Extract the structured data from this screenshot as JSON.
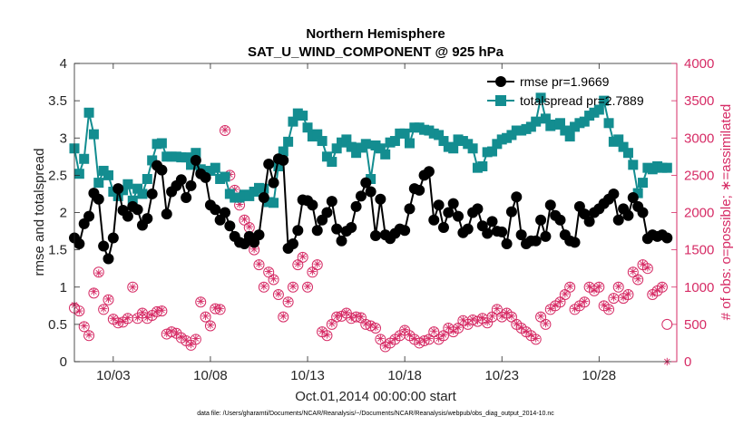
{
  "chart_data": {
    "type": "line",
    "title": "Northern Hemisphere",
    "subtitle": "SAT_U_WIND_COMPONENT @ 925 hPa",
    "xlabel": "Oct.01,2014 00:00:00 start",
    "ylabel_left": "rmse and totalspread",
    "ylabel_right": "# of obs: o=possible; ∗=assimilated",
    "footnote": "data file: /Users/gharamti/Documents/NCAR/Reanalysis/~/Documents/NCAR/Reanalysis/webpub/obs_diag_output_2014-10.nc",
    "xlim": [
      1.0,
      32.0
    ],
    "ylim_left": [
      0,
      4
    ],
    "ylim_right": [
      0,
      4000
    ],
    "x_ticks": [
      3,
      8,
      13,
      18,
      23,
      28
    ],
    "x_tick_labels": [
      "10/03",
      "10/08",
      "10/13",
      "10/18",
      "10/23",
      "10/28"
    ],
    "y_ticks_left": [
      0,
      0.5,
      1,
      1.5,
      2,
      2.5,
      3,
      3.5,
      4
    ],
    "y_tick_labels_left": [
      "0",
      "0.5",
      "1",
      "1.5",
      "2",
      "2.5",
      "3",
      "3.5",
      "4"
    ],
    "y_ticks_right": [
      0,
      500,
      1000,
      1500,
      2000,
      2500,
      3000,
      3500,
      4000
    ],
    "y_tick_labels_right": [
      "0",
      "500",
      "1000",
      "1500",
      "2000",
      "2500",
      "3000",
      "3500",
      "4000"
    ],
    "legend_position": "top-right",
    "colors": {
      "rmse": "#000000",
      "totalspread": "#138d90",
      "obs": "#d62b65",
      "axis": "#262626"
    },
    "x_start": 1.0,
    "x_step": 0.25,
    "series": [
      {
        "name": "rmse pr=1.9669",
        "axis": "left",
        "values": [
          1.66,
          1.58,
          1.85,
          1.95,
          2.26,
          2.18,
          1.55,
          1.38,
          1.66,
          2.32,
          2.03,
          1.95,
          2.08,
          2.04,
          1.83,
          1.92,
          2.25,
          2.63,
          2.57,
          1.98,
          2.28,
          2.36,
          2.44,
          2.2,
          2.36,
          2.7,
          2.52,
          2.47,
          2.1,
          2.04,
          1.9,
          2.0,
          1.82,
          1.68,
          1.6,
          1.58,
          1.68,
          1.6,
          1.7,
          2.2,
          2.65,
          2.4,
          2.72,
          2.7,
          1.52,
          1.58,
          1.76,
          2.17,
          2.16,
          2.1,
          1.76,
          1.9,
          2.0,
          2.15,
          1.78,
          1.62,
          1.75,
          1.8,
          2.08,
          2.22,
          2.4,
          2.28,
          1.69,
          2.18,
          1.7,
          1.65,
          1.72,
          1.78,
          1.76,
          2.05,
          2.32,
          2.3,
          2.5,
          2.55,
          1.9,
          2.1,
          1.8,
          2.0,
          2.12,
          1.95,
          1.73,
          1.78,
          2.0,
          2.05,
          1.82,
          1.72,
          1.88,
          1.75,
          1.74,
          1.58,
          2.01,
          2.21,
          1.7,
          1.58,
          1.62,
          1.62,
          1.9,
          1.68,
          2.1,
          1.96,
          1.9,
          1.7,
          1.62,
          1.6,
          2.08,
          1.98,
          1.88,
          2.0,
          2.05,
          2.12,
          2.18,
          2.25,
          1.9,
          2.05,
          1.96,
          2.2,
          2.08,
          2.0,
          1.65,
          1.7,
          1.68,
          1.7,
          1.66
        ]
      },
      {
        "name": "totalspread pr=2.7889",
        "axis": "left",
        "values": [
          2.86,
          2.52,
          2.72,
          3.34,
          3.05,
          2.4,
          2.56,
          2.5,
          2.28,
          2.22,
          2.3,
          2.38,
          2.16,
          2.32,
          2.25,
          2.45,
          2.7,
          2.92,
          2.93,
          2.75,
          2.75,
          2.75,
          2.74,
          2.74,
          2.64,
          2.8,
          2.58,
          2.54,
          2.56,
          2.6,
          2.45,
          2.48,
          2.25,
          2.2,
          2.2,
          2.24,
          2.22,
          2.28,
          2.33,
          2.32,
          2.14,
          2.13,
          2.62,
          2.82,
          2.95,
          3.22,
          3.33,
          3.3,
          3.14,
          3.02,
          3.05,
          2.96,
          2.75,
          2.68,
          2.86,
          2.94,
          2.98,
          2.88,
          2.8,
          2.87,
          2.92,
          2.45,
          2.9,
          2.86,
          2.78,
          2.94,
          2.96,
          3.06,
          3.06,
          2.93,
          3.14,
          3.14,
          3.11,
          3.1,
          3.06,
          3.04,
          2.96,
          2.88,
          2.86,
          2.98,
          2.96,
          2.92,
          2.86,
          2.6,
          2.62,
          2.81,
          2.82,
          2.92,
          2.98,
          3.0,
          3.04,
          3.1,
          3.1,
          3.12,
          3.15,
          3.22,
          3.54,
          3.26,
          3.16,
          3.18,
          3.2,
          3.1,
          3.02,
          3.15,
          3.2,
          3.22,
          3.3,
          3.34,
          3.38,
          3.5,
          3.2,
          2.95,
          2.98,
          2.88,
          2.8,
          2.64,
          2.26,
          2.4,
          2.6,
          2.58,
          2.62,
          2.6,
          2.6
        ]
      },
      {
        "name": "possible",
        "axis": "right",
        "values": [
          720,
          680,
          470,
          350,
          920,
          1200,
          700,
          830,
          570,
          520,
          530,
          580,
          1000,
          580,
          650,
          580,
          620,
          670,
          680,
          370,
          400,
          380,
          320,
          280,
          220,
          300,
          800,
          600,
          480,
          710,
          700,
          3100,
          2500,
          2300,
          2100,
          1900,
          1800,
          1500,
          1300,
          1000,
          1200,
          1100,
          900,
          600,
          800,
          1000,
          1300,
          1400,
          1000,
          1200,
          1300,
          400,
          350,
          500,
          600,
          610,
          650,
          580,
          600,
          590,
          500,
          480,
          450,
          300,
          200,
          250,
          300,
          350,
          420,
          350,
          300,
          250,
          280,
          300,
          400,
          300,
          350,
          450,
          400,
          450,
          550,
          500,
          560,
          540,
          580,
          520,
          600,
          700,
          600,
          650,
          600,
          500,
          450,
          400,
          350,
          300,
          600,
          500,
          700,
          750,
          800,
          900,
          1000,
          700,
          750,
          800,
          1000,
          950,
          1000,
          750,
          700,
          850,
          1000,
          850,
          900,
          1200,
          1100,
          1300,
          1250,
          900,
          950,
          1000,
          500
        ]
      },
      {
        "name": "assimilated",
        "axis": "right",
        "values": [
          760,
          680,
          480,
          360,
          940,
          1190,
          710,
          840,
          580,
          530,
          540,
          590,
          1000,
          590,
          660,
          590,
          630,
          680,
          690,
          380,
          410,
          390,
          330,
          290,
          230,
          310,
          810,
          610,
          490,
          720,
          710,
          3110,
          2510,
          2310,
          2110,
          1910,
          1810,
          1510,
          1310,
          1010,
          1210,
          1110,
          910,
          610,
          810,
          1010,
          1310,
          1410,
          1010,
          1210,
          1310,
          410,
          360,
          510,
          610,
          620,
          660,
          590,
          610,
          600,
          510,
          490,
          460,
          310,
          210,
          260,
          310,
          360,
          430,
          360,
          310,
          260,
          290,
          310,
          410,
          310,
          360,
          460,
          410,
          460,
          560,
          510,
          570,
          550,
          590,
          530,
          610,
          710,
          610,
          660,
          610,
          510,
          460,
          410,
          360,
          310,
          610,
          510,
          710,
          760,
          810,
          910,
          1010,
          710,
          760,
          810,
          1010,
          960,
          1010,
          760,
          710,
          860,
          1010,
          860,
          910,
          1210,
          1110,
          1310,
          1260,
          910,
          960,
          1010,
          0
        ]
      }
    ]
  }
}
